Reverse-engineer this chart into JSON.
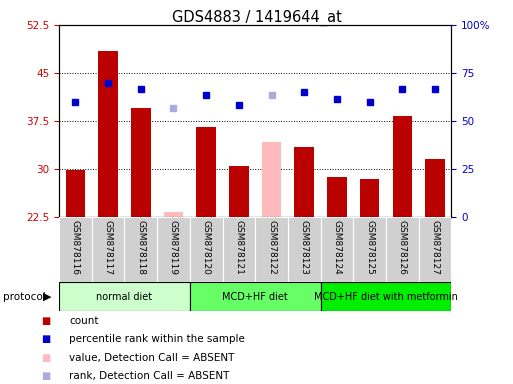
{
  "title": "GDS4883 / 1419644_at",
  "samples": [
    "GSM878116",
    "GSM878117",
    "GSM878118",
    "GSM878119",
    "GSM878120",
    "GSM878121",
    "GSM878122",
    "GSM878123",
    "GSM878124",
    "GSM878125",
    "GSM878126",
    "GSM878127"
  ],
  "count_values": [
    29.8,
    48.5,
    39.5,
    null,
    36.5,
    30.5,
    null,
    33.5,
    28.8,
    28.5,
    38.2,
    31.5
  ],
  "count_absent": [
    null,
    null,
    null,
    23.2,
    null,
    null,
    34.2,
    null,
    null,
    null,
    null,
    null
  ],
  "percentile_values": [
    40.5,
    43.5,
    42.5,
    null,
    41.5,
    40.0,
    null,
    42.0,
    41.0,
    40.5,
    42.5,
    42.5
  ],
  "percentile_absent": [
    null,
    null,
    null,
    39.5,
    null,
    null,
    41.5,
    null,
    null,
    null,
    null,
    null
  ],
  "ylim_left": [
    22.5,
    52.5
  ],
  "ylim_right": [
    0,
    100
  ],
  "yticks_left": [
    22.5,
    30,
    37.5,
    45,
    52.5
  ],
  "ytick_labels_left": [
    "22.5",
    "30",
    "37.5",
    "45",
    "52.5"
  ],
  "yticks_right": [
    0,
    25,
    50,
    75,
    100
  ],
  "ytick_labels_right": [
    "0",
    "25",
    "50",
    "75",
    "100%"
  ],
  "protocols": [
    {
      "label": "normal diet",
      "start": 0,
      "end": 4,
      "color": "#ccffcc"
    },
    {
      "label": "MCD+HF diet",
      "start": 4,
      "end": 8,
      "color": "#66ff66"
    },
    {
      "label": "MCD+HF diet with metformin",
      "start": 8,
      "end": 12,
      "color": "#00ee00"
    }
  ],
  "bar_width": 0.6,
  "count_color": "#bb0000",
  "count_absent_color": "#ffbbbb",
  "percentile_color": "#0000cc",
  "percentile_absent_color": "#aaaadd",
  "plot_bg": "#ffffff",
  "left_label_color": "#cc0000",
  "right_label_color": "#0000cc",
  "sample_box_color": "#d0d0d0",
  "legend_items": [
    {
      "color": "#bb0000",
      "label": "count"
    },
    {
      "color": "#0000cc",
      "label": "percentile rank within the sample"
    },
    {
      "color": "#ffbbbb",
      "label": "value, Detection Call = ABSENT"
    },
    {
      "color": "#aaaadd",
      "label": "rank, Detection Call = ABSENT"
    }
  ]
}
